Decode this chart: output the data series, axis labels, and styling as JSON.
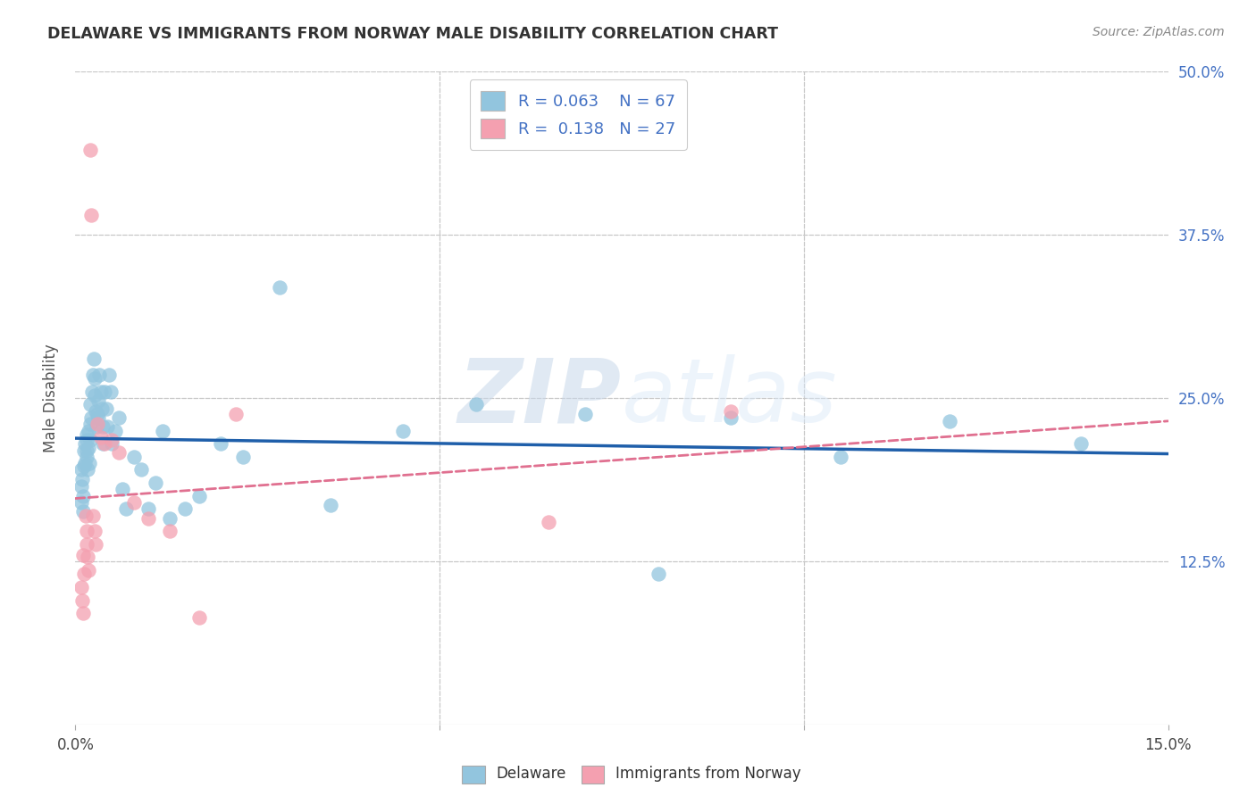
{
  "title": "DELAWARE VS IMMIGRANTS FROM NORWAY MALE DISABILITY CORRELATION CHART",
  "source": "Source: ZipAtlas.com",
  "ylabel_label": "Male Disability",
  "xlim": [
    0.0,
    0.15
  ],
  "ylim": [
    0.0,
    0.5
  ],
  "background_color": "#ffffff",
  "grid_color": "#c8c8c8",
  "watermark_zip": "ZIP",
  "watermark_atlas": "atlas",
  "legend_r1": "0.063",
  "legend_n1": "67",
  "legend_r2": "0.138",
  "legend_n2": "27",
  "delaware_color": "#92c5de",
  "norway_color": "#f4a0b0",
  "delaware_line_color": "#1f5faa",
  "norway_line_color": "#e07090",
  "delaware_x": [
    0.0008,
    0.0008,
    0.0008,
    0.0009,
    0.001,
    0.001,
    0.0012,
    0.0012,
    0.0013,
    0.0013,
    0.0015,
    0.0015,
    0.0016,
    0.0016,
    0.0017,
    0.0018,
    0.0018,
    0.0019,
    0.002,
    0.002,
    0.0021,
    0.0022,
    0.0023,
    0.0024,
    0.0025,
    0.0026,
    0.0027,
    0.0028,
    0.0029,
    0.003,
    0.0031,
    0.0032,
    0.0033,
    0.0035,
    0.0036,
    0.0037,
    0.0038,
    0.004,
    0.0042,
    0.0044,
    0.0046,
    0.0048,
    0.005,
    0.0055,
    0.006,
    0.0065,
    0.007,
    0.008,
    0.009,
    0.01,
    0.011,
    0.012,
    0.013,
    0.015,
    0.017,
    0.02,
    0.023,
    0.028,
    0.035,
    0.045,
    0.055,
    0.07,
    0.08,
    0.09,
    0.105,
    0.12,
    0.138
  ],
  "delaware_y": [
    0.195,
    0.182,
    0.17,
    0.188,
    0.175,
    0.163,
    0.21,
    0.198,
    0.215,
    0.2,
    0.222,
    0.21,
    0.218,
    0.205,
    0.195,
    0.225,
    0.212,
    0.2,
    0.23,
    0.218,
    0.245,
    0.235,
    0.255,
    0.268,
    0.28,
    0.265,
    0.252,
    0.24,
    0.228,
    0.238,
    0.248,
    0.235,
    0.268,
    0.255,
    0.242,
    0.228,
    0.215,
    0.255,
    0.242,
    0.228,
    0.268,
    0.255,
    0.215,
    0.225,
    0.235,
    0.18,
    0.165,
    0.205,
    0.195,
    0.165,
    0.185,
    0.225,
    0.158,
    0.165,
    0.175,
    0.215,
    0.205,
    0.335,
    0.168,
    0.225,
    0.245,
    0.238,
    0.115,
    0.235,
    0.205,
    0.232,
    0.215
  ],
  "norway_x": [
    0.0008,
    0.0009,
    0.001,
    0.0011,
    0.0012,
    0.0014,
    0.0015,
    0.0016,
    0.0017,
    0.0018,
    0.002,
    0.0022,
    0.0024,
    0.0026,
    0.0028,
    0.003,
    0.0035,
    0.004,
    0.005,
    0.006,
    0.008,
    0.01,
    0.013,
    0.017,
    0.022,
    0.065,
    0.09
  ],
  "norway_y": [
    0.105,
    0.095,
    0.085,
    0.13,
    0.115,
    0.16,
    0.148,
    0.138,
    0.128,
    0.118,
    0.44,
    0.39,
    0.16,
    0.148,
    0.138,
    0.23,
    0.22,
    0.215,
    0.218,
    0.208,
    0.17,
    0.158,
    0.148,
    0.082,
    0.238,
    0.155,
    0.24
  ]
}
